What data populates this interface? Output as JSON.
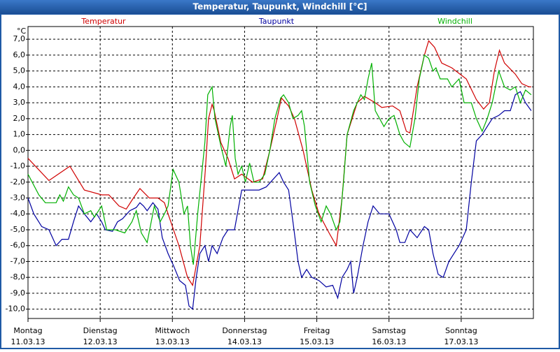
{
  "chart_data": {
    "type": "line",
    "title": "Temperatur, Taupunkt, Windchill [°C]",
    "y_label": "°C",
    "xlim": [
      0,
      7
    ],
    "xticks": [
      {
        "value": 0,
        "label": "Montag"
      },
      {
        "value": 1,
        "label": "Dienstag"
      },
      {
        "value": 2,
        "label": "Mittwoch"
      },
      {
        "value": 3,
        "label": "Donnerstag"
      },
      {
        "value": 4,
        "label": "Freitag"
      },
      {
        "value": 5,
        "label": "Samstag"
      },
      {
        "value": 6,
        "label": "Sonntag"
      }
    ],
    "xtick_dates": [
      "11.03.13",
      "12.03.13",
      "13.03.13",
      "14.03.13",
      "15.03.13",
      "16.03.13",
      "17.03.13"
    ],
    "ylim": [
      -10.5,
      7.8
    ],
    "yticks": [
      {
        "value": -10,
        "label": "-10,0"
      },
      {
        "value": -9,
        "label": "-9,0"
      },
      {
        "value": -8,
        "label": "-8,0"
      },
      {
        "value": -7,
        "label": "-7,0"
      },
      {
        "value": -6,
        "label": "-6,0"
      },
      {
        "value": -5,
        "label": "-5,0"
      },
      {
        "value": -4,
        "label": "-4,0"
      },
      {
        "value": -3,
        "label": "-3,0"
      },
      {
        "value": -2,
        "label": "-2,0"
      },
      {
        "value": -1,
        "label": "-1,0"
      },
      {
        "value": 0,
        "label": "0,0"
      },
      {
        "value": 1,
        "label": "1,0"
      },
      {
        "value": 2,
        "label": "2,0"
      },
      {
        "value": 3,
        "label": "3,0"
      },
      {
        "value": 4,
        "label": "4,0"
      },
      {
        "value": 5,
        "label": "5,0"
      },
      {
        "value": 6,
        "label": "6,0"
      },
      {
        "value": 7,
        "label": "7,0"
      }
    ],
    "grid": true,
    "legend": "top",
    "series": [
      {
        "name": "Temperatur",
        "color": "#d00000",
        "x": [
          0,
          0.29,
          0.58,
          0.78,
          1.02,
          1.12,
          1.26,
          1.36,
          1.46,
          1.55,
          1.68,
          1.8,
          1.89,
          1.94,
          2.09,
          2.21,
          2.28,
          2.38,
          2.46,
          2.5,
          2.55,
          2.58,
          2.67,
          2.77,
          2.86,
          2.96,
          3.11,
          3.25,
          3.35,
          3.45,
          3.51,
          3.61,
          3.69,
          3.81,
          3.93,
          4.03,
          4.17,
          4.27,
          4.35,
          4.42,
          4.56,
          4.66,
          4.81,
          4.9,
          5.05,
          5.15,
          5.24,
          5.29,
          5.39,
          5.49,
          5.55,
          5.63,
          5.73,
          5.87,
          6.07,
          6.21,
          6.31,
          6.39,
          6.46,
          6.53,
          6.6,
          6.75,
          6.84,
          6.94,
          6.97
        ],
        "values": [
          -0.5,
          -1.9,
          -1.0,
          -2.5,
          -2.8,
          -2.8,
          -3.5,
          -3.7,
          -3.0,
          -2.4,
          -3.0,
          -3.0,
          -3.3,
          -4.0,
          -6.0,
          -8.0,
          -8.5,
          -6.0,
          -1.0,
          2.0,
          2.9,
          2.5,
          0.5,
          -0.5,
          -1.8,
          -1.5,
          -2.0,
          -1.8,
          0.0,
          2.0,
          3.3,
          2.8,
          2.0,
          0.0,
          -2.5,
          -4.0,
          -5.2,
          -6.0,
          -3.0,
          1.0,
          3.0,
          3.4,
          3.0,
          2.7,
          2.8,
          2.5,
          1.2,
          1.1,
          4.0,
          6.0,
          6.9,
          6.5,
          5.5,
          5.2,
          4.5,
          3.2,
          2.6,
          3.0,
          5.0,
          6.3,
          5.5,
          4.8,
          4.2,
          4.0,
          4.0
        ]
      },
      {
        "name": "Taupunkt",
        "color": "#0000a0",
        "x": [
          0,
          0.08,
          0.19,
          0.29,
          0.39,
          0.47,
          0.56,
          0.63,
          0.7,
          0.78,
          0.87,
          0.95,
          1.02,
          1.07,
          1.17,
          1.24,
          1.31,
          1.41,
          1.5,
          1.55,
          1.6,
          1.65,
          1.73,
          1.8,
          1.86,
          1.94,
          2.02,
          2.1,
          2.18,
          2.23,
          2.28,
          2.33,
          2.38,
          2.45,
          2.5,
          2.55,
          2.62,
          2.7,
          2.77,
          2.86,
          2.96,
          3.06,
          3.2,
          3.3,
          3.4,
          3.48,
          3.54,
          3.61,
          3.67,
          3.74,
          3.79,
          3.86,
          3.93,
          4.03,
          4.13,
          4.22,
          4.29,
          4.35,
          4.42,
          4.47,
          4.51,
          4.56,
          4.64,
          4.71,
          4.78,
          4.87,
          5.0,
          5.1,
          5.15,
          5.22,
          5.29,
          5.39,
          5.49,
          5.55,
          5.61,
          5.68,
          5.75,
          5.83,
          5.9,
          5.97,
          6.07,
          6.14,
          6.21,
          6.29,
          6.36,
          6.43,
          6.52,
          6.6,
          6.68,
          6.75,
          6.82,
          6.89,
          6.97
        ],
        "values": [
          -3.0,
          -4.0,
          -4.8,
          -5.0,
          -6.0,
          -5.6,
          -5.6,
          -4.5,
          -3.5,
          -4.0,
          -4.5,
          -4.0,
          -4.5,
          -5.0,
          -5.1,
          -4.5,
          -4.3,
          -3.8,
          -3.6,
          -3.3,
          -3.5,
          -3.8,
          -3.3,
          -3.7,
          -5.5,
          -6.5,
          -7.3,
          -8.2,
          -8.5,
          -9.8,
          -10.0,
          -8.0,
          -6.5,
          -6.0,
          -7.0,
          -6.0,
          -6.5,
          -5.5,
          -5.0,
          -5.0,
          -2.5,
          -2.5,
          -2.5,
          -2.3,
          -1.8,
          -1.4,
          -2.0,
          -2.5,
          -4.5,
          -7.0,
          -8.0,
          -7.5,
          -8.0,
          -8.2,
          -8.6,
          -8.5,
          -9.3,
          -8.0,
          -7.5,
          -7.0,
          -9.0,
          -8.0,
          -6.0,
          -4.5,
          -3.5,
          -4.0,
          -4.0,
          -5.0,
          -5.8,
          -5.8,
          -5.0,
          -5.5,
          -4.8,
          -5.0,
          -6.5,
          -7.8,
          -8.0,
          -7.0,
          -6.5,
          -6.0,
          -5.0,
          -2.0,
          0.6,
          1.0,
          1.5,
          2.0,
          2.2,
          2.5,
          2.5,
          3.5,
          3.7,
          3.0,
          2.5
        ]
      },
      {
        "name": "Windchill",
        "color": "#00b000",
        "x": [
          0,
          0.15,
          0.24,
          0.39,
          0.44,
          0.49,
          0.56,
          0.63,
          0.7,
          0.78,
          0.87,
          0.92,
          1.02,
          1.09,
          1.21,
          1.34,
          1.44,
          1.5,
          1.57,
          1.65,
          1.75,
          1.83,
          1.89,
          1.94,
          2.01,
          2.09,
          2.16,
          2.21,
          2.25,
          2.29,
          2.35,
          2.45,
          2.49,
          2.55,
          2.59,
          2.67,
          2.74,
          2.8,
          2.83,
          2.87,
          2.91,
          2.96,
          3.01,
          3.07,
          3.13,
          3.2,
          3.28,
          3.35,
          3.42,
          3.5,
          3.54,
          3.61,
          3.67,
          3.74,
          3.79,
          3.83,
          3.9,
          3.98,
          4.06,
          4.13,
          4.19,
          4.27,
          4.32,
          4.37,
          4.42,
          4.51,
          4.61,
          4.66,
          4.71,
          4.76,
          4.81,
          4.87,
          4.93,
          5.0,
          5.07,
          5.15,
          5.21,
          5.29,
          5.36,
          5.42,
          5.49,
          5.55,
          5.61,
          5.65,
          5.71,
          5.81,
          5.87,
          5.97,
          6.04,
          6.14,
          6.21,
          6.29,
          6.36,
          6.43,
          6.52,
          6.6,
          6.68,
          6.75,
          6.82,
          6.89,
          6.97
        ],
        "values": [
          -1.5,
          -2.8,
          -3.3,
          -3.3,
          -2.8,
          -3.2,
          -2.3,
          -2.8,
          -3.0,
          -4.0,
          -3.8,
          -4.2,
          -3.5,
          -5.0,
          -5.0,
          -5.2,
          -4.5,
          -3.8,
          -5.2,
          -5.8,
          -3.5,
          -4.5,
          -4.0,
          -3.5,
          -1.2,
          -2.0,
          -4.0,
          -3.5,
          -6.0,
          -7.2,
          -4.0,
          0.5,
          3.5,
          4.0,
          2.0,
          0.3,
          -1.0,
          1.5,
          2.2,
          -0.5,
          -1.5,
          -1.0,
          -2.0,
          -0.8,
          -2.0,
          -2.0,
          -1.5,
          0.0,
          2.0,
          3.3,
          3.5,
          3.0,
          2.0,
          2.2,
          2.5,
          1.5,
          -2.0,
          -3.5,
          -4.5,
          -3.5,
          -4.0,
          -5.0,
          -4.5,
          -2.0,
          1.0,
          2.5,
          3.5,
          3.2,
          4.5,
          5.5,
          2.5,
          2.0,
          1.5,
          2.0,
          2.2,
          1.0,
          0.5,
          0.2,
          2.0,
          4.5,
          6.0,
          5.8,
          5.0,
          5.2,
          4.5,
          4.5,
          4.0,
          4.5,
          3.0,
          3.0,
          2.0,
          1.2,
          2.0,
          3.0,
          5.0,
          4.0,
          3.8,
          4.0,
          3.0,
          3.8,
          3.5
        ]
      }
    ]
  }
}
